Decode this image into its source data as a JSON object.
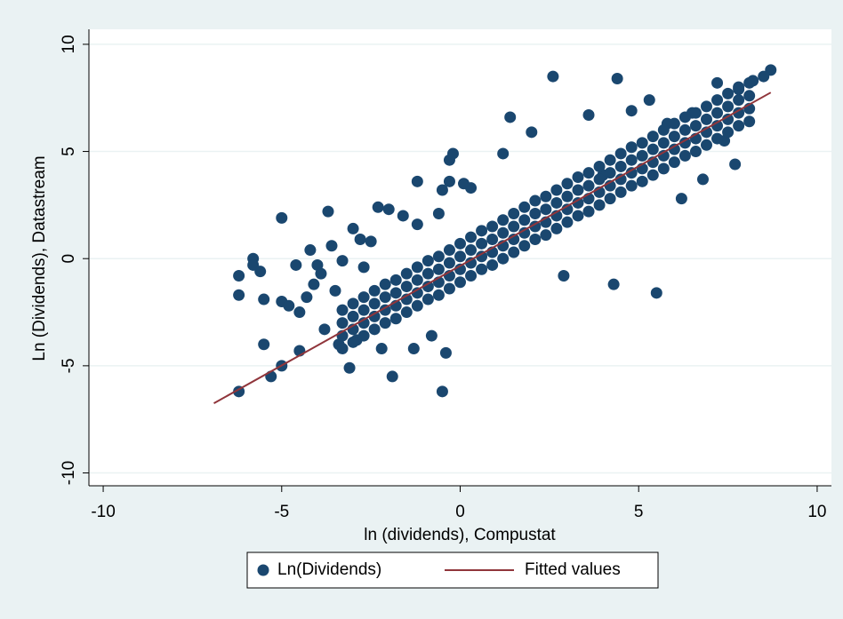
{
  "chart_data": {
    "type": "scatter",
    "x_label": "ln (dividends), Compustat",
    "y_label": "Ln (Dividends), Datastream",
    "xlim": [
      -10.4,
      10.4
    ],
    "ylim": [
      -10.6,
      10.7
    ],
    "xticks": [
      -10,
      -5,
      0,
      5,
      10
    ],
    "yticks": [
      -10,
      -5,
      0,
      5,
      10
    ],
    "grid": true,
    "legend": "bottom",
    "series": [
      {
        "name": "Ln(Dividends)",
        "color": "#1a476f",
        "x": [
          -6.2,
          -6.2,
          -6.2,
          -5.8,
          -5.8,
          -5.6,
          -5.5,
          -5.5,
          -5.3,
          -5.0,
          -5.0,
          -5.0,
          -4.8,
          -4.6,
          -4.5,
          -4.5,
          -4.3,
          -4.2,
          -4.1,
          -4.0,
          -3.9,
          -3.8,
          -3.7,
          -3.6,
          -3.5,
          -3.4,
          -3.3,
          -3.1,
          -3.0,
          -2.9,
          -2.8,
          -2.7,
          -2.5,
          -2.3,
          -2.2,
          -2.0,
          -1.9,
          -1.6,
          -1.3,
          -1.2,
          -1.2,
          -0.8,
          -0.6,
          -0.5,
          -0.5,
          -0.4,
          -0.3,
          -0.3,
          -0.2,
          0.1,
          0.3,
          1.2,
          1.4,
          2.0,
          2.6,
          2.9,
          3.6,
          4.0,
          4.4,
          4.3,
          5.5,
          5.3,
          6.2,
          6.8,
          7.7,
          7.2,
          7.4,
          6.5,
          8.7,
          8.5,
          8.2,
          7.8,
          5.8,
          4.8,
          -3.3,
          -3.3,
          -3.3,
          -3.3,
          -3.0,
          -3.0,
          -3.0,
          -3.0,
          -2.7,
          -2.7,
          -2.7,
          -2.7,
          -2.4,
          -2.4,
          -2.4,
          -2.4,
          -2.1,
          -2.1,
          -2.1,
          -2.1,
          -1.8,
          -1.8,
          -1.8,
          -1.8,
          -1.5,
          -1.5,
          -1.5,
          -1.5,
          -1.2,
          -1.2,
          -1.2,
          -1.2,
          -0.9,
          -0.9,
          -0.9,
          -0.9,
          -0.6,
          -0.6,
          -0.6,
          -0.6,
          -0.3,
          -0.3,
          -0.3,
          -0.3,
          0,
          0,
          0,
          0,
          0.3,
          0.3,
          0.3,
          0.3,
          0.6,
          0.6,
          0.6,
          0.6,
          0.9,
          0.9,
          0.9,
          0.9,
          1.2,
          1.2,
          1.2,
          1.2,
          1.5,
          1.5,
          1.5,
          1.5,
          1.8,
          1.8,
          1.8,
          1.8,
          2.1,
          2.1,
          2.1,
          2.1,
          2.4,
          2.4,
          2.4,
          2.4,
          2.7,
          2.7,
          2.7,
          2.7,
          3.0,
          3.0,
          3.0,
          3.0,
          3.3,
          3.3,
          3.3,
          3.3,
          3.6,
          3.6,
          3.6,
          3.6,
          3.9,
          3.9,
          3.9,
          3.9,
          4.2,
          4.2,
          4.2,
          4.2,
          4.5,
          4.5,
          4.5,
          4.5,
          4.8,
          4.8,
          4.8,
          4.8,
          5.1,
          5.1,
          5.1,
          5.1,
          5.4,
          5.4,
          5.4,
          5.4,
          5.7,
          5.7,
          5.7,
          5.7,
          6.0,
          6.0,
          6.0,
          6.0,
          6.3,
          6.3,
          6.3,
          6.3,
          6.6,
          6.6,
          6.6,
          6.6,
          6.9,
          6.9,
          6.9,
          6.9,
          7.2,
          7.2,
          7.2,
          7.2,
          7.5,
          7.5,
          7.5,
          7.5,
          7.8,
          7.8,
          7.8,
          7.8,
          8.1,
          8.1,
          8.1,
          8.1
        ],
        "values": [
          -0.8,
          -1.7,
          -6.2,
          0,
          -0.3,
          -0.6,
          -1.9,
          -4.0,
          -5.5,
          1.9,
          -2.0,
          -5.0,
          -2.2,
          -0.3,
          -2.5,
          -4.3,
          -1.8,
          0.4,
          -1.2,
          -0.3,
          -0.7,
          -3.3,
          2.2,
          0.6,
          -1.5,
          -4.0,
          -0.1,
          -5.1,
          1.4,
          -3.8,
          0.9,
          -0.4,
          0.8,
          2.4,
          -4.2,
          2.3,
          -5.5,
          2.0,
          -4.2,
          1.6,
          3.6,
          -3.6,
          2.1,
          3.2,
          -6.2,
          -4.4,
          3.6,
          4.6,
          4.9,
          3.5,
          3.3,
          4.9,
          6.6,
          5.9,
          8.5,
          -0.8,
          6.7,
          3.9,
          8.4,
          -1.2,
          -1.6,
          7.4,
          2.8,
          3.7,
          4.4,
          8.2,
          5.5,
          6.8,
          8.8,
          8.5,
          8.3,
          7.9,
          6.3,
          6.9,
          -4.2,
          -3.6,
          -3.0,
          -2.4,
          -3.9,
          -3.3,
          -2.7,
          -2.1,
          -3.6,
          -3.0,
          -2.4,
          -1.8,
          -3.3,
          -2.7,
          -2.1,
          -1.5,
          -3.0,
          -2.4,
          -1.8,
          -1.2,
          -2.8,
          -2.2,
          -1.6,
          -1.0,
          -2.5,
          -1.9,
          -1.3,
          -0.7,
          -2.2,
          -1.6,
          -1.0,
          -0.4,
          -1.9,
          -1.3,
          -0.7,
          -0.1,
          -1.7,
          -1.1,
          -0.5,
          0.1,
          -1.4,
          -0.8,
          -0.2,
          0.4,
          -1.1,
          -0.5,
          0.1,
          0.7,
          -0.8,
          -0.2,
          0.4,
          1.0,
          -0.5,
          0.1,
          0.7,
          1.3,
          -0.3,
          0.3,
          0.9,
          1.5,
          0,
          0.6,
          1.2,
          1.8,
          0.3,
          0.9,
          1.5,
          2.1,
          0.6,
          1.2,
          1.8,
          2.4,
          0.9,
          1.5,
          2.1,
          2.7,
          1.1,
          1.7,
          2.3,
          2.9,
          1.4,
          2.0,
          2.6,
          3.2,
          1.7,
          2.3,
          2.9,
          3.5,
          2.0,
          2.6,
          3.2,
          3.8,
          2.2,
          2.8,
          3.4,
          4.0,
          2.5,
          3.1,
          3.7,
          4.3,
          2.8,
          3.4,
          4.0,
          4.6,
          3.1,
          3.7,
          4.3,
          4.9,
          3.4,
          4.0,
          4.6,
          5.2,
          3.6,
          4.2,
          4.8,
          5.4,
          3.9,
          4.5,
          5.1,
          5.7,
          4.2,
          4.8,
          5.4,
          6.0,
          4.5,
          5.1,
          5.7,
          6.3,
          4.8,
          5.4,
          6.0,
          6.6,
          5.0,
          5.6,
          6.2,
          6.8,
          5.3,
          5.9,
          6.5,
          7.1,
          5.6,
          6.2,
          6.8,
          7.4,
          5.9,
          6.5,
          7.1,
          7.7,
          6.2,
          6.8,
          7.4,
          8.0,
          6.4,
          7.0,
          7.6,
          8.2
        ]
      },
      {
        "name": "Fitted values",
        "color": "#90353b",
        "type": "line",
        "x": [
          -6.9,
          8.7
        ],
        "values": [
          -6.75,
          7.75
        ]
      }
    ]
  }
}
